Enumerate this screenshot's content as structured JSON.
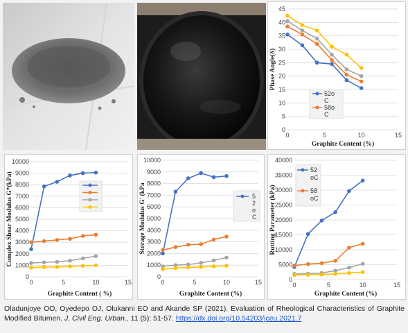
{
  "caption": {
    "text": "Oladunjoye OO, Oyedepo OJ, Olukanni EO and Akande SP (2021). Evaluation of Rheological Characteristics of Graphite Modified Bitumen.",
    "journal": "J. Civil Eng. Urban.,",
    "volume": " 11 (5): 51-57. ",
    "doi": "https://dx.doi.org/10.54203/jceu.2021.7"
  },
  "colors": {
    "blue": "#4472c4",
    "orange": "#ed7d31",
    "gray": "#a5a5a5",
    "yellow": "#ffc000"
  },
  "chart_data": [
    {
      "type": "line",
      "xlabel": "Graphite Content (%)",
      "ylabel": "Phase Angle(δ)",
      "xlim": [
        0,
        15
      ],
      "ylim": [
        0,
        45
      ],
      "xticks": [
        0,
        5,
        10,
        15
      ],
      "yticks": [
        0,
        5,
        10,
        15,
        20,
        25,
        30,
        35,
        40,
        45
      ],
      "x": [
        0,
        2,
        4,
        6,
        8,
        10
      ],
      "legend": {
        "placement": "center",
        "labels": [
          "52o C",
          "58o C"
        ]
      },
      "series": [
        {
          "name": "52o C",
          "color": "blue",
          "values": [
            35.5,
            31.5,
            25,
            24.5,
            18.5,
            15.5
          ]
        },
        {
          "name": "58o C",
          "color": "orange",
          "values": [
            38.5,
            35.5,
            32,
            26,
            20.5,
            18
          ]
        },
        {
          "color": "gray",
          "values": [
            40.5,
            37,
            34,
            28,
            22.5,
            20
          ]
        },
        {
          "color": "yellow",
          "values": [
            42.5,
            39,
            37,
            31,
            28,
            23
          ]
        }
      ]
    },
    {
      "type": "line",
      "xlabel": "Graphite Content ( %)",
      "ylabel": "Complex Shear Modulus G*(kPa)",
      "xlim": [
        0,
        15
      ],
      "ylim": [
        0,
        10000
      ],
      "xticks": [
        0,
        5,
        10,
        15
      ],
      "yticks": [
        0,
        1000,
        2000,
        3000,
        4000,
        5000,
        6000,
        7000,
        8000,
        9000,
        10000
      ],
      "x": [
        0,
        2,
        4,
        6,
        8,
        10
      ],
      "legend": {
        "placement": "top-right",
        "labels": []
      },
      "series": [
        {
          "color": "blue",
          "values": [
            2400,
            7850,
            8250,
            8800,
            9000,
            9050
          ]
        },
        {
          "color": "orange",
          "values": [
            3000,
            3100,
            3200,
            3300,
            3550,
            3650
          ]
        },
        {
          "color": "gray",
          "values": [
            1200,
            1250,
            1300,
            1400,
            1600,
            1800
          ]
        },
        {
          "color": "yellow",
          "values": [
            800,
            850,
            850,
            900,
            950,
            1000
          ]
        }
      ]
    },
    {
      "type": "line",
      "xlabel": "Graphite Content (%)",
      "ylabel": "Storage Modulus G' (kPa",
      "xlim": [
        0,
        15
      ],
      "ylim": [
        0,
        10000
      ],
      "xticks": [
        0,
        5,
        10,
        15
      ],
      "yticks": [
        0,
        1000,
        2000,
        3000,
        4000,
        5000,
        6000,
        7000,
        8000,
        9000,
        10000
      ],
      "x": [
        0,
        2,
        4,
        6,
        8,
        10
      ],
      "legend": {
        "placement": "top-right",
        "labels": [
          "5",
          "2",
          "o",
          "C"
        ]
      },
      "series": [
        {
          "color": "blue",
          "values": [
            2000,
            7300,
            8450,
            8900,
            8550,
            8650
          ]
        },
        {
          "color": "orange",
          "values": [
            2300,
            2550,
            2750,
            2800,
            3200,
            3450
          ]
        },
        {
          "color": "gray",
          "values": [
            900,
            1000,
            1050,
            1200,
            1400,
            1650
          ]
        },
        {
          "color": "yellow",
          "values": [
            650,
            750,
            800,
            850,
            900,
            950
          ]
        }
      ]
    },
    {
      "type": "line",
      "xlabel": "Graphite Content (%)",
      "ylabel": "Rutting Parameter (kPa)",
      "xlim": [
        0,
        15
      ],
      "ylim": [
        0,
        40000
      ],
      "xticks": [
        0,
        5,
        10,
        15
      ],
      "yticks": [
        0,
        5000,
        10000,
        15000,
        20000,
        25000,
        30000,
        35000,
        40000
      ],
      "x": [
        0,
        2,
        4,
        6,
        8,
        10
      ],
      "legend": {
        "placement": "top-left",
        "labels": [
          "52 oC",
          "58 oC"
        ]
      },
      "series": [
        {
          "name": "52 oC",
          "color": "blue",
          "values": [
            4200,
            15300,
            19800,
            22600,
            29700,
            33200
          ]
        },
        {
          "name": "58 oC",
          "color": "orange",
          "values": [
            4700,
            5200,
            5500,
            6300,
            10700,
            12000
          ]
        },
        {
          "color": "gray",
          "values": [
            1900,
            2000,
            2200,
            3000,
            4000,
            5300
          ]
        },
        {
          "color": "yellow",
          "values": [
            1500,
            1600,
            1700,
            1900,
            2200,
            2500
          ]
        }
      ]
    }
  ]
}
